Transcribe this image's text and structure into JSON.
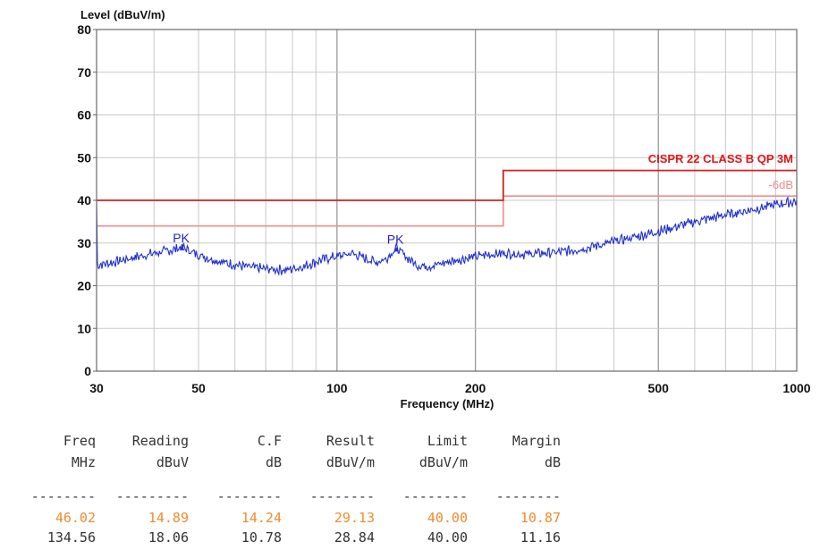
{
  "chart_data": {
    "type": "line",
    "ylabel": "Level (dBuV/m)",
    "xlabel": "Frequency (MHz)",
    "xscale": "log",
    "xlim": [
      30,
      1000
    ],
    "ylim": [
      0,
      80
    ],
    "yticks": [
      "0",
      "10",
      "20",
      "30",
      "40",
      "50",
      "60",
      "70",
      "80"
    ],
    "xticks": [
      {
        "value": 30,
        "label": "30"
      },
      {
        "value": 50,
        "label": "50"
      },
      {
        "value": 100,
        "label": "100"
      },
      {
        "value": 200,
        "label": "200"
      },
      {
        "value": 500,
        "label": "500"
      },
      {
        "value": 1000,
        "label": "1000"
      }
    ],
    "grid": true,
    "limit_label": "CISPR 22 CLASS B QP 3M",
    "margin_label": "-6dB",
    "limit_line": [
      [
        30,
        40
      ],
      [
        230,
        40
      ],
      [
        230,
        47
      ],
      [
        1000,
        47
      ]
    ],
    "margin_line": [
      [
        30,
        34
      ],
      [
        230,
        34
      ],
      [
        230,
        41
      ],
      [
        1000,
        41
      ]
    ],
    "peaks": [
      {
        "label": "PK",
        "x": 46.02,
        "y": 29.13
      },
      {
        "label": "PK",
        "x": 134.56,
        "y": 28.84
      }
    ],
    "series": [
      {
        "values": [
          [
            30,
            24.8
          ],
          [
            33,
            25.6
          ],
          [
            36,
            26.6
          ],
          [
            40,
            27.6
          ],
          [
            42,
            28.0
          ],
          [
            44,
            28.4
          ],
          [
            46.02,
            29.13
          ],
          [
            49,
            27.6
          ],
          [
            53,
            26.3
          ],
          [
            58,
            25.2
          ],
          [
            64,
            24.4
          ],
          [
            70,
            23.9
          ],
          [
            78,
            23.7
          ],
          [
            85,
            24.6
          ],
          [
            92,
            26.0
          ],
          [
            100,
            26.9
          ],
          [
            108,
            27.6
          ],
          [
            115,
            26.4
          ],
          [
            122,
            25.5
          ],
          [
            128,
            26.4
          ],
          [
            134.56,
            28.84
          ],
          [
            142,
            26.6
          ],
          [
            150,
            24.7
          ],
          [
            160,
            24.6
          ],
          [
            175,
            25.6
          ],
          [
            190,
            26.4
          ],
          [
            210,
            27.2
          ],
          [
            230,
            27.6
          ],
          [
            260,
            27.4
          ],
          [
            300,
            27.8
          ],
          [
            340,
            28.6
          ],
          [
            400,
            30.3
          ],
          [
            460,
            31.8
          ],
          [
            520,
            33.2
          ],
          [
            600,
            35.0
          ],
          [
            700,
            36.6
          ],
          [
            800,
            37.8
          ],
          [
            900,
            39.0
          ],
          [
            1000,
            39.8
          ]
        ],
        "color": "#1f2fcf"
      }
    ],
    "limit_color": "#d42020",
    "margin_color": "#f28b8b"
  },
  "results_table": {
    "header1": [
      "Freq",
      "Reading",
      "C.F",
      "Result",
      "Limit",
      "Margin"
    ],
    "header2": [
      "MHz",
      "dBuV",
      "dB",
      "dBuV/m",
      "dBuV/m",
      "dB"
    ],
    "dashes": [
      "--------",
      "---------",
      "--------",
      "--------",
      "--------",
      "--------"
    ],
    "rows": [
      [
        "46.02",
        "14.89",
        "14.24",
        "29.13",
        "40.00",
        "10.87"
      ],
      [
        "134.56",
        "18.06",
        "10.78",
        "28.84",
        "40.00",
        "11.16"
      ]
    ],
    "highlight_color": "#f28a2e"
  }
}
